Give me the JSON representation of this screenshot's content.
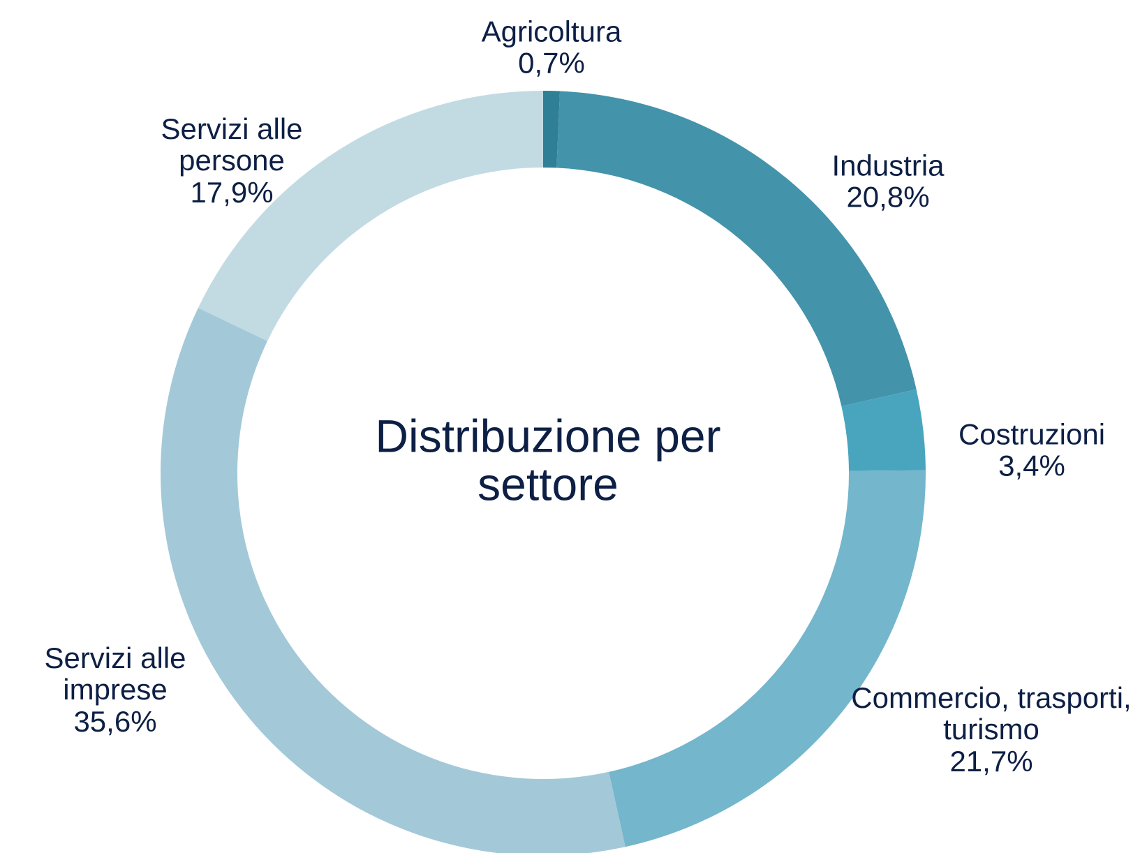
{
  "chart_data": {
    "type": "donut",
    "title": "Distribuzione per settore",
    "categories": [
      "Agricoltura",
      "Industria",
      "Costruzioni",
      "Commercio, trasporti, turismo",
      "Servizi alle imprese",
      "Servizi alle persone"
    ],
    "values": [
      0.7,
      20.8,
      3.4,
      21.7,
      35.6,
      17.9
    ],
    "value_labels": [
      "0,7%",
      "20,8%",
      "3,4%",
      "21,7%",
      "35,6%",
      "17,9%"
    ],
    "colors": [
      "#2f7f96",
      "#4393ab",
      "#49a5be",
      "#74b6cc",
      "#a3c9d9",
      "#c2dbe3"
    ]
  }
}
